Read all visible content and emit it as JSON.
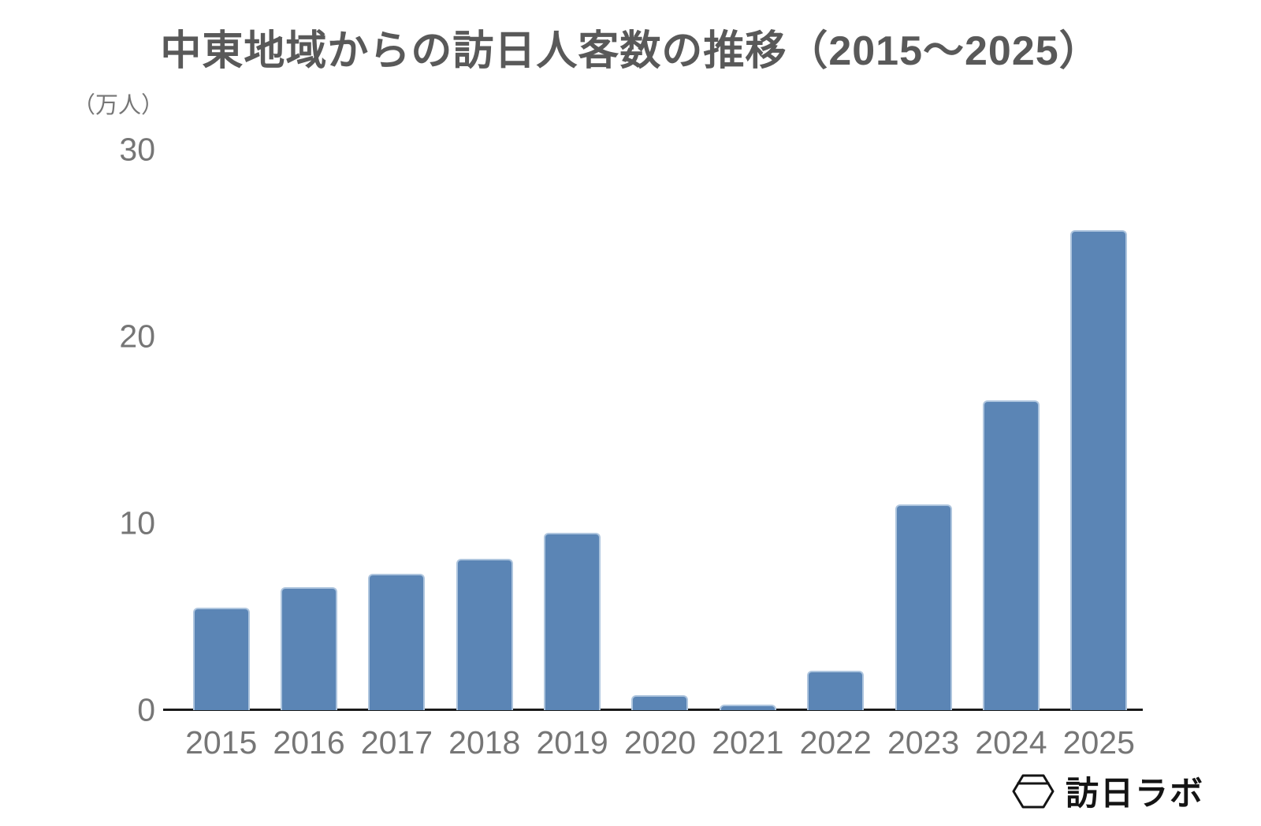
{
  "title": "中東地域からの訪日人客数の推移（2015～2025）",
  "unit_label": "（万人）",
  "logo": {
    "icon": "hexagon-logo-icon",
    "text": "訪日ラボ"
  },
  "colors": {
    "bar_fill": "#5b85b5",
    "bar_border": "#aec5de",
    "title_text": "#595959",
    "axis_text": "#767676",
    "axis_line": "#1a1a1a",
    "background": "#ffffff",
    "logo_text": "#141414"
  },
  "chart_data": {
    "type": "bar",
    "title": "中東地域からの訪日人客数の推移（2015～2025）",
    "categories": [
      "2015",
      "2016",
      "2017",
      "2018",
      "2019",
      "2020",
      "2021",
      "2022",
      "2023",
      "2024",
      "2025"
    ],
    "values": [
      5.5,
      6.6,
      7.3,
      8.1,
      9.5,
      0.8,
      0.3,
      2.1,
      11.0,
      16.6,
      25.7
    ],
    "xlabel": "",
    "ylabel": "（万人）",
    "ylim": [
      0,
      30
    ],
    "yticks": [
      0,
      10,
      20,
      30
    ],
    "grid": false,
    "legend": false,
    "bar_color": "#5b85b5"
  }
}
